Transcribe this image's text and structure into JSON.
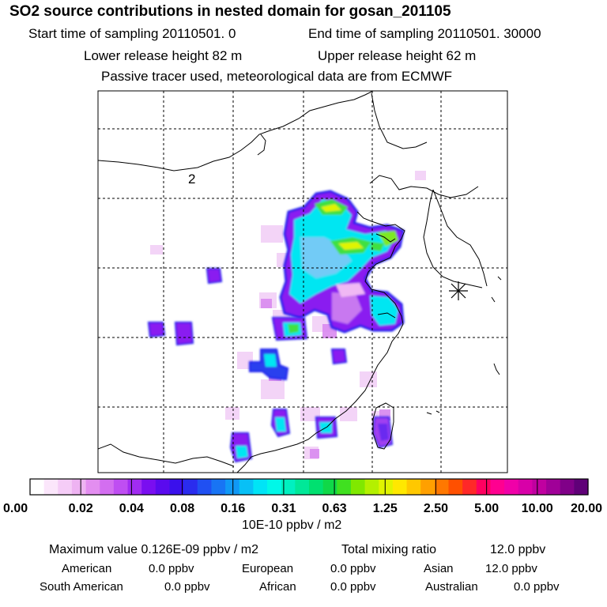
{
  "chart_data": {
    "type": "heatmap",
    "title": "SO2 source contributions in nested domain for gosan_201105",
    "subtitle_lines": [
      {
        "a": "Start time of sampling 20110501.     0",
        "b": "End time of sampling 20110501. 30000"
      },
      {
        "a": "Lower release height   82 m",
        "b": "Upper release height   62 m"
      },
      {
        "a": "Passive tracer used, meteorological data are from ECMWF",
        "b": ""
      }
    ],
    "map_label": "2",
    "colorbar": {
      "tick_labels": [
        "0.00",
        "0.02",
        "0.04",
        "0.08",
        "0.16",
        "0.31",
        "0.63",
        "1.25",
        "2.50",
        "5.00",
        "10.00",
        "20.00"
      ],
      "unit_label": "10E-10 ppbv / m2",
      "colors": [
        "#ffffff",
        "#fbe6fb",
        "#f5ccf7",
        "#eeb3f2",
        "#e38ef0",
        "#d36ef0",
        "#bf4ef2",
        "#a12cf2",
        "#7a0ef0",
        "#5a0aee",
        "#3a10ec",
        "#2a2cee",
        "#2050f2",
        "#1874f4",
        "#1098f6",
        "#08c0f6",
        "#00e4f6",
        "#00f8e8",
        "#00f0c0",
        "#00e898",
        "#00e070",
        "#10d848",
        "#40e020",
        "#80e800",
        "#b4f000",
        "#e0f400",
        "#ffe800",
        "#ffc800",
        "#ffa000",
        "#ff7800",
        "#ff5000",
        "#ff2828",
        "#ff0060",
        "#ff0090",
        "#f000a8",
        "#d800a8",
        "#c000a0",
        "#a00098",
        "#800088",
        "#600078"
      ]
    },
    "stats": {
      "max_label": "Maximum value  0.126E-09 ppbv / m2",
      "total_label": "Total mixing ratio",
      "total_value": "12.0 ppbv",
      "regions": [
        {
          "name": "American",
          "value": "0.0 ppbv"
        },
        {
          "name": "European",
          "value": "0.0 ppbv"
        },
        {
          "name": "Asian",
          "value": "12.0 ppbv"
        },
        {
          "name": "South American",
          "value": "0.0 ppbv"
        },
        {
          "name": "African",
          "value": "0.0 ppbv"
        },
        {
          "name": "Australian",
          "value": "0.0 ppbv"
        }
      ]
    },
    "receptor_marker": "asterisk"
  }
}
